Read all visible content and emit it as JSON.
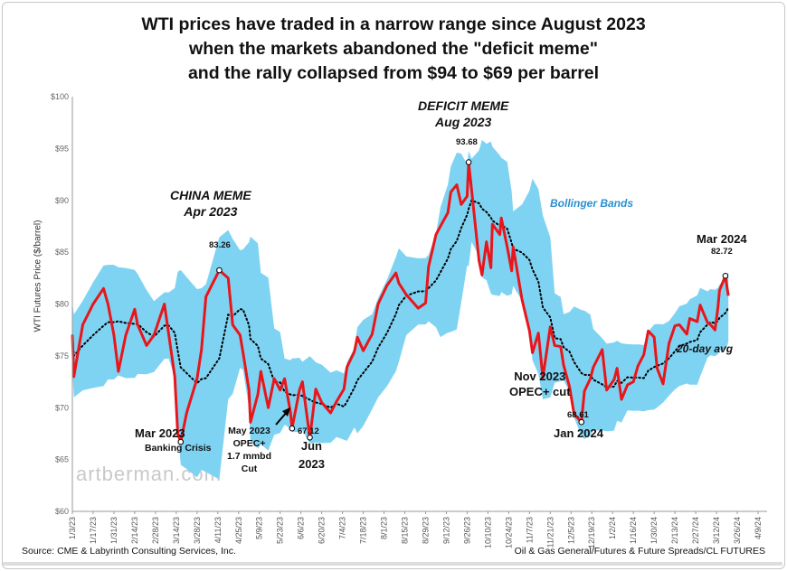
{
  "chart_data": {
    "type": "line",
    "title": "WTI prices have traded in a narrow range since August 2023 when the markets abandoned the \"deficit meme\" and the rally collapsed from $94 to $69 per barrel",
    "title_lines": [
      "WTI prices have traded in a narrow range since August 2023",
      "when the markets abandoned the \"deficit meme\"",
      "and the rally collapsed from $94 to $69 per barrel"
    ],
    "ylabel": "WTI Futures Price ($/barrel)",
    "xlabel": "",
    "ylim": [
      60,
      100
    ],
    "y_ticks": [
      "$60",
      "$65",
      "$70",
      "$75",
      "$80",
      "$85",
      "$90",
      "$95",
      "$100"
    ],
    "x_ticks": [
      "1/3/23",
      "1/17/23",
      "1/31/23",
      "2/14/23",
      "2/28/23",
      "3/14/23",
      "3/28/23",
      "4/11/23",
      "4/25/23",
      "5/9/23",
      "5/23/23",
      "6/6/23",
      "6/20/23",
      "7/4/23",
      "7/18/23",
      "8/1/23",
      "8/15/23",
      "8/29/23",
      "9/12/23",
      "9/26/23",
      "10/10/23",
      "10/24/23",
      "11/7/23",
      "11/21/23",
      "12/5/23",
      "12/19/23",
      "1/2/24",
      "1/16/24",
      "1/30/24",
      "2/13/24",
      "2/27/24",
      "3/12/24",
      "3/26/24",
      "4/9/24"
    ],
    "grid": false,
    "colors": {
      "price": "#e8161b",
      "bands": "#7fd3f2",
      "avg": "#000000"
    },
    "series": [
      {
        "name": "",
        "type": "price",
        "points": [
          [
            "2023-01-03",
            77
          ],
          [
            "2023-01-04",
            73
          ],
          [
            "2023-01-10",
            78
          ],
          [
            "2023-01-17",
            80
          ],
          [
            "2023-01-24",
            81.5
          ],
          [
            "2023-01-27",
            80
          ],
          [
            "2023-01-31",
            77
          ],
          [
            "2023-02-03",
            73.5
          ],
          [
            "2023-02-08",
            77
          ],
          [
            "2023-02-14",
            79.5
          ],
          [
            "2023-02-16",
            78
          ],
          [
            "2023-02-22",
            76
          ],
          [
            "2023-02-27",
            77
          ],
          [
            "2023-03-06",
            80
          ],
          [
            "2023-03-09",
            77
          ],
          [
            "2023-03-13",
            73
          ],
          [
            "2023-03-15",
            67.5
          ],
          [
            "2023-03-17",
            66.7
          ],
          [
            "2023-03-21",
            69.5
          ],
          [
            "2023-03-28",
            72.8
          ],
          [
            "2023-03-31",
            75.6
          ],
          [
            "2023-04-03",
            80.7
          ],
          [
            "2023-04-12",
            83.26
          ],
          [
            "2023-04-18",
            82.5
          ],
          [
            "2023-04-21",
            78
          ],
          [
            "2023-04-26",
            77
          ],
          [
            "2023-04-28",
            75.3
          ],
          [
            "2023-05-02",
            71.7
          ],
          [
            "2023-05-03",
            68.6
          ],
          [
            "2023-05-08",
            71.3
          ],
          [
            "2023-05-10",
            73.5
          ],
          [
            "2023-05-15",
            70
          ],
          [
            "2023-05-19",
            72.8
          ],
          [
            "2023-05-23",
            71.7
          ],
          [
            "2023-05-26",
            72.8
          ],
          [
            "2023-05-30",
            69.5
          ],
          [
            "2023-05-31",
            68
          ],
          [
            "2023-06-05",
            71.7
          ],
          [
            "2023-06-07",
            72.5
          ],
          [
            "2023-06-12",
            67.12
          ],
          [
            "2023-06-14",
            69.4
          ],
          [
            "2023-06-16",
            71.8
          ],
          [
            "2023-06-20",
            70.5
          ],
          [
            "2023-06-26",
            69.5
          ],
          [
            "2023-06-30",
            70.6
          ],
          [
            "2023-07-05",
            71.8
          ],
          [
            "2023-07-07",
            73.9
          ],
          [
            "2023-07-12",
            75.4
          ],
          [
            "2023-07-14",
            76.8
          ],
          [
            "2023-07-18",
            75.5
          ],
          [
            "2023-07-24",
            77.1
          ],
          [
            "2023-07-28",
            80
          ],
          [
            "2023-08-03",
            81.8
          ],
          [
            "2023-08-09",
            83
          ],
          [
            "2023-08-11",
            82
          ],
          [
            "2023-08-16",
            80.9
          ],
          [
            "2023-08-24",
            79.6
          ],
          [
            "2023-08-29",
            80.1
          ],
          [
            "2023-08-31",
            83.6
          ],
          [
            "2023-09-05",
            86.7
          ],
          [
            "2023-09-08",
            87.5
          ],
          [
            "2023-09-13",
            88.8
          ],
          [
            "2023-09-15",
            90.8
          ],
          [
            "2023-09-19",
            91.5
          ],
          [
            "2023-09-22",
            89.6
          ],
          [
            "2023-09-26",
            90.4
          ],
          [
            "2023-09-27",
            93.68
          ],
          [
            "2023-09-29",
            91
          ],
          [
            "2023-10-04",
            84.2
          ],
          [
            "2023-10-06",
            82.8
          ],
          [
            "2023-10-09",
            86
          ],
          [
            "2023-10-12",
            83.5
          ],
          [
            "2023-10-13",
            87.7
          ],
          [
            "2023-10-18",
            86.7
          ],
          [
            "2023-10-19",
            88.3
          ],
          [
            "2023-10-23",
            85.5
          ],
          [
            "2023-10-26",
            83.2
          ],
          [
            "2023-10-27",
            85.5
          ],
          [
            "2023-11-02",
            80.4
          ],
          [
            "2023-11-07",
            77.4
          ],
          [
            "2023-11-09",
            75.3
          ],
          [
            "2023-11-13",
            77.2
          ],
          [
            "2023-11-16",
            72.9
          ],
          [
            "2023-11-21",
            77.8
          ],
          [
            "2023-11-24",
            76
          ],
          [
            "2023-11-28",
            75.9
          ],
          [
            "2023-11-30",
            74.1
          ],
          [
            "2023-12-04",
            72
          ],
          [
            "2023-12-07",
            69.4
          ],
          [
            "2023-12-12",
            68.61
          ],
          [
            "2023-12-14",
            71.6
          ],
          [
            "2023-12-18",
            72.8
          ],
          [
            "2023-12-20",
            73.9
          ],
          [
            "2023-12-26",
            75.6
          ],
          [
            "2023-12-29",
            71.7
          ],
          [
            "2024-01-03",
            72.7
          ],
          [
            "2024-01-05",
            73.8
          ],
          [
            "2024-01-08",
            70.8
          ],
          [
            "2024-01-12",
            72.2
          ],
          [
            "2024-01-16",
            72.5
          ],
          [
            "2024-01-19",
            74
          ],
          [
            "2024-01-23",
            75.1
          ],
          [
            "2024-01-26",
            77.4
          ],
          [
            "2024-01-30",
            76.8
          ],
          [
            "2024-02-01",
            73.8
          ],
          [
            "2024-02-05",
            72.3
          ],
          [
            "2024-02-09",
            76.2
          ],
          [
            "2024-02-13",
            77.9
          ],
          [
            "2024-02-16",
            78
          ],
          [
            "2024-02-21",
            77.1
          ],
          [
            "2024-02-23",
            78.6
          ],
          [
            "2024-02-28",
            78.3
          ],
          [
            "2024-03-01",
            79.9
          ],
          [
            "2024-03-06",
            78.2
          ],
          [
            "2024-03-08",
            78
          ],
          [
            "2024-03-11",
            77.5
          ],
          [
            "2024-03-13",
            79.7
          ],
          [
            "2024-03-14",
            81.3
          ],
          [
            "2024-03-18",
            82.72
          ],
          [
            "2024-03-19",
            81.7
          ],
          [
            "2024-03-20",
            80.8
          ]
        ]
      }
    ],
    "derived": {
      "avg": "20-day avg",
      "bands": "Bollinger Bands"
    },
    "annotations": {
      "deficit": [
        "DEFICIT MEME",
        "Aug 2023"
      ],
      "deficit_val": "93.68",
      "china": [
        "CHINA MEME",
        "Apr 2023"
      ],
      "china_val": "83.26",
      "bollinger": "Bollinger Bands",
      "mar24": "Mar 2024",
      "mar24_val": "82.72",
      "avg20": "20-day avg",
      "nov23": [
        "Nov 2023",
        "OPEC+ cut"
      ],
      "jan24_val": "68.61",
      "jan24": "Jan 2024",
      "mar23": "Mar 2023",
      "mar23_sub": "Banking Crisis",
      "may23": [
        "May 2023",
        "OPEC+",
        "1.7 mmbd",
        "Cut"
      ],
      "jun23_val": "67.12",
      "jun23": [
        "Jun",
        "2023"
      ]
    }
  },
  "watermark": "artberman.com",
  "footer": {
    "source": "Source: CME & Labyrinth Consulting Services, Inc.",
    "path": "Oil & Gas General/Futures & Future Spreads/CL FUTURES"
  }
}
